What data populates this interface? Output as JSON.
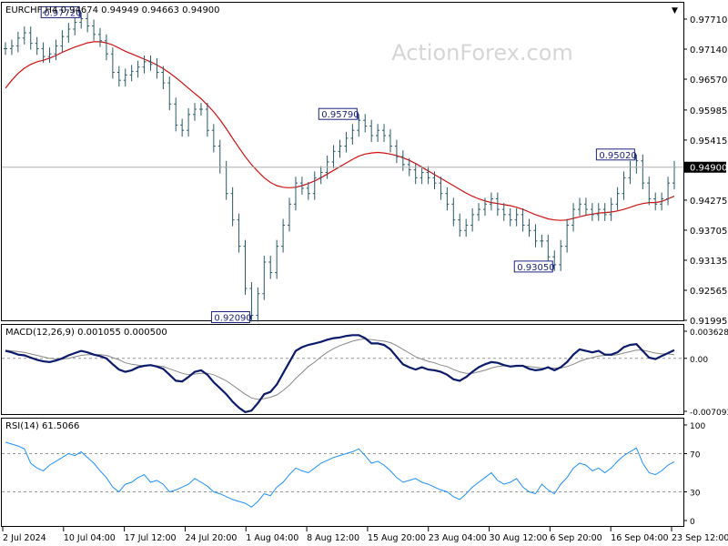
{
  "chart_data": [
    {
      "type": "line",
      "title": "EURCHF,H4  0.94674 0.94949 0.94663 0.94900",
      "watermark": "ActionForex.com",
      "y_ticks": [
        "0.97710",
        "0.97140",
        "0.96570",
        "0.95985",
        "0.95415",
        "0.94900",
        "0.94275",
        "0.93705",
        "0.93135",
        "0.92565",
        "0.91995"
      ],
      "ylim": [
        0.91995,
        0.9771
      ],
      "current_price": "0.94900",
      "x_ticks": [
        "2 Jul 2024",
        "10 Jul 04:00",
        "17 Jul 12:00",
        "24 Jul 20:00",
        "1 Aug 04:00",
        "8 Aug 12:00",
        "15 Aug 20:00",
        "23 Aug 04:00",
        "30 Aug 12:00",
        "6 Sep 20:00",
        "16 Sep 04:00",
        "23 Sep 12:00"
      ],
      "series": [
        {
          "role": "price",
          "color": "#2a5868",
          "values": [
            0.9715,
            0.972,
            0.9735,
            0.9745,
            0.9725,
            0.9715,
            0.97,
            0.9705,
            0.972,
            0.9738,
            0.9752,
            0.9765,
            0.9772,
            0.9758,
            0.9742,
            0.973,
            0.9705,
            0.967,
            0.9655,
            0.9665,
            0.9672,
            0.968,
            0.969,
            0.9685,
            0.967,
            0.965,
            0.961,
            0.957,
            0.956,
            0.959,
            0.96,
            0.96,
            0.956,
            0.953,
            0.949,
            0.944,
            0.939,
            0.934,
            0.926,
            0.9209,
            0.925,
            0.931,
            0.929,
            0.934,
            0.938,
            0.942,
            0.946,
            0.945,
            0.944,
            0.947,
            0.948,
            0.95,
            0.952,
            0.953,
            0.9545,
            0.956,
            0.9579,
            0.9568,
            0.955,
            0.956,
            0.955,
            0.953,
            0.951,
            0.9495,
            0.9485,
            0.947,
            0.948,
            0.947,
            0.946,
            0.944,
            0.942,
            0.939,
            0.937,
            0.938,
            0.94,
            0.941,
            0.942,
            0.943,
            0.941,
            0.94,
            0.939,
            0.94,
            0.938,
            0.937,
            0.935,
            0.935,
            0.932,
            0.9305,
            0.934,
            0.938,
            0.941,
            0.942,
            0.941,
            0.94,
            0.941,
            0.94,
            0.942,
            0.944,
            0.947,
            0.949,
            0.9502,
            0.946,
            0.943,
            0.942,
            0.943,
            0.946,
            0.949
          ]
        },
        {
          "role": "moving average",
          "color": "#d01010",
          "values": [
            0.964,
            0.9655,
            0.9668,
            0.9678,
            0.9685,
            0.969,
            0.9693,
            0.9697,
            0.9702,
            0.9708,
            0.9713,
            0.9718,
            0.9722,
            0.9726,
            0.9728,
            0.9728,
            0.9726,
            0.9722,
            0.9716,
            0.971,
            0.9705,
            0.97,
            0.9695,
            0.969,
            0.9684,
            0.9677,
            0.9669,
            0.966,
            0.965,
            0.964,
            0.963,
            0.962,
            0.9608,
            0.9595,
            0.958,
            0.9563,
            0.9545,
            0.9527,
            0.951,
            0.9495,
            0.9482,
            0.947,
            0.9461,
            0.9455,
            0.9452,
            0.9451,
            0.9452,
            0.9455,
            0.9459,
            0.9464,
            0.947,
            0.9477,
            0.9484,
            0.9491,
            0.9498,
            0.9505,
            0.9511,
            0.9515,
            0.9517,
            0.9518,
            0.9517,
            0.9515,
            0.9512,
            0.9508,
            0.9503,
            0.9497,
            0.949,
            0.9483,
            0.9476,
            0.9469,
            0.9462,
            0.9455,
            0.9448,
            0.9441,
            0.9435,
            0.943,
            0.9426,
            0.9423,
            0.9421,
            0.9419,
            0.9417,
            0.9414,
            0.941,
            0.9405,
            0.94,
            0.9396,
            0.9392,
            0.939,
            0.9389,
            0.939,
            0.9393,
            0.9396,
            0.9399,
            0.9401,
            0.9403,
            0.9404,
            0.9405,
            0.9407,
            0.941,
            0.9414,
            0.9418,
            0.9421,
            0.9423,
            0.9423,
            0.9425,
            0.943,
            0.9435
          ]
        }
      ],
      "annotations": [
        {
          "label": "0.97720",
          "x_index": 12
        },
        {
          "label": "0.92090",
          "x_index": 39
        },
        {
          "label": "0.95790",
          "x_index": 56
        },
        {
          "label": "0.93050",
          "x_index": 87
        },
        {
          "label": "0.95020",
          "x_index": 100
        }
      ]
    },
    {
      "type": "line",
      "title": "MACD(12,26,9) 0.001055 0.000500",
      "y_ticks": [
        "0.003628",
        "0.00",
        "-0.007093"
      ],
      "ylim": [
        -0.007093,
        0.003628
      ],
      "series": [
        {
          "role": "MACD",
          "color": "#0b1a6b",
          "values": [
            0.001,
            0.0008,
            0.0005,
            0.0004,
            0.0001,
            -0.0002,
            -0.0004,
            -0.0005,
            -0.0003,
            0.0,
            0.0004,
            0.0007,
            0.001,
            0.0008,
            0.0005,
            0.0003,
            0.0,
            -0.0008,
            -0.0015,
            -0.0018,
            -0.0016,
            -0.0012,
            -0.001,
            -0.0009,
            -0.0011,
            -0.0014,
            -0.0022,
            -0.003,
            -0.0031,
            -0.0025,
            -0.0018,
            -0.0016,
            -0.0022,
            -0.0032,
            -0.004,
            -0.0048,
            -0.0058,
            -0.0066,
            -0.0072,
            -0.007,
            -0.006,
            -0.0048,
            -0.0045,
            -0.0035,
            -0.002,
            -0.0005,
            0.001,
            0.0015,
            0.0018,
            0.002,
            0.0022,
            0.0025,
            0.0027,
            0.0028,
            0.003,
            0.0031,
            0.0031,
            0.0027,
            0.002,
            0.002,
            0.0018,
            0.0012,
            0.0002,
            -0.0008,
            -0.0012,
            -0.0015,
            -0.0012,
            -0.0015,
            -0.0016,
            -0.0018,
            -0.0022,
            -0.0028,
            -0.003,
            -0.0025,
            -0.0018,
            -0.0012,
            -0.0008,
            -0.0005,
            -0.0006,
            -0.0009,
            -0.0011,
            -0.001,
            -0.001,
            -0.0014,
            -0.0016,
            -0.0015,
            -0.0012,
            -0.0016,
            -0.0012,
            -0.0005,
            0.0005,
            0.0012,
            0.001,
            0.0008,
            0.001,
            0.0005,
            0.0005,
            0.0008,
            0.0015,
            0.0018,
            0.0019,
            0.001,
            0.0001,
            -0.0001,
            0.0003,
            0.0007,
            0.0011
          ]
        },
        {
          "role": "signal",
          "color": "#888888",
          "values": [
            0.0011,
            0.001,
            0.0009,
            0.0008,
            0.0006,
            0.0004,
            0.0002,
            0.0,
            -0.0001,
            -0.0001,
            0.0,
            0.0002,
            0.0004,
            0.0005,
            0.0005,
            0.0005,
            0.0004,
            0.0001,
            -0.0002,
            -0.0006,
            -0.0008,
            -0.0009,
            -0.001,
            -0.001,
            -0.001,
            -0.0011,
            -0.0014,
            -0.0017,
            -0.002,
            -0.0022,
            -0.0021,
            -0.002,
            -0.002,
            -0.0022,
            -0.0026,
            -0.003,
            -0.0036,
            -0.0042,
            -0.0048,
            -0.0053,
            -0.0055,
            -0.0054,
            -0.0052,
            -0.0049,
            -0.0043,
            -0.0036,
            -0.0027,
            -0.0019,
            -0.0011,
            -0.0005,
            0.0002,
            0.0008,
            0.0013,
            0.0017,
            0.002,
            0.0023,
            0.0025,
            0.0026,
            0.0025,
            0.0024,
            0.0023,
            0.0021,
            0.0017,
            0.0012,
            0.0007,
            0.0002,
            -0.0001,
            -0.0004,
            -0.0006,
            -0.0009,
            -0.0011,
            -0.0015,
            -0.0018,
            -0.002,
            -0.002,
            -0.0018,
            -0.0016,
            -0.0013,
            -0.0011,
            -0.001,
            -0.001,
            -0.001,
            -0.001,
            -0.0011,
            -0.0012,
            -0.0013,
            -0.0013,
            -0.0013,
            -0.0013,
            -0.0011,
            -0.0008,
            -0.0004,
            -0.0001,
            0.0001,
            0.0003,
            0.0004,
            0.0004,
            0.0005,
            0.0007,
            0.0009,
            0.0011,
            0.0011,
            0.0009,
            0.0007,
            0.0006,
            0.0006,
            0.0005
          ]
        }
      ]
    },
    {
      "type": "line",
      "title": "RSI(14) 61.5066",
      "y_ticks": [
        "100",
        "70",
        "30",
        "0"
      ],
      "ylim": [
        0,
        100
      ],
      "levels": [
        70,
        30
      ],
      "series": [
        {
          "role": "RSI",
          "color": "#1e90ff",
          "values": [
            82,
            80,
            78,
            75,
            60,
            55,
            52,
            58,
            62,
            66,
            70,
            68,
            72,
            66,
            60,
            52,
            45,
            35,
            30,
            38,
            40,
            45,
            48,
            40,
            42,
            38,
            30,
            32,
            35,
            38,
            44,
            40,
            36,
            30,
            28,
            25,
            22,
            20,
            18,
            14,
            20,
            28,
            26,
            35,
            40,
            48,
            55,
            52,
            50,
            55,
            60,
            63,
            66,
            68,
            70,
            72,
            75,
            68,
            60,
            62,
            58,
            52,
            45,
            40,
            42,
            44,
            40,
            38,
            35,
            32,
            30,
            25,
            22,
            28,
            35,
            40,
            45,
            50,
            42,
            38,
            40,
            44,
            35,
            30,
            28,
            38,
            32,
            28,
            38,
            45,
            55,
            60,
            58,
            52,
            55,
            50,
            55,
            62,
            68,
            72,
            76,
            60,
            50,
            48,
            52,
            58,
            61.5
          ]
        }
      ]
    }
  ]
}
